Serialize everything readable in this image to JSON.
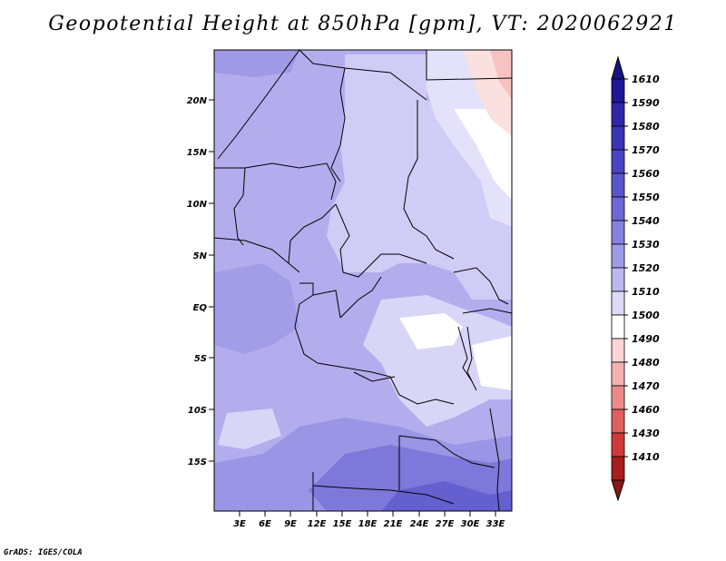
{
  "title": "Geopotential Height at 850hPa [gpm], VT: 2020062921",
  "credit": "GrADS: IGES/COLA",
  "map": {
    "lat_labels": [
      "20N",
      "15N",
      "10N",
      "5N",
      "EQ",
      "5S",
      "10S",
      "15S"
    ],
    "lon_labels": [
      "3E",
      "6E",
      "9E",
      "12E",
      "15E",
      "18E",
      "21E",
      "24E",
      "27E",
      "30E",
      "33E"
    ]
  },
  "colorbar": {
    "levels": [
      "1610",
      "1590",
      "1580",
      "1570",
      "1560",
      "1550",
      "1540",
      "1530",
      "1520",
      "1510",
      "1500",
      "1490",
      "1480",
      "1470",
      "1460",
      "1430",
      "1410"
    ],
    "colors": [
      "#1f1796",
      "#2e28a8",
      "#3b35b5",
      "#4a44c2",
      "#5b55cc",
      "#6e68d6",
      "#8680e0",
      "#a09be8",
      "#bcb8f0",
      "#dcdaf8",
      "#ffffff",
      "#fbd5d5",
      "#f5b1b1",
      "#ec8a8a",
      "#df5e5e",
      "#d03a3a",
      "#a81d1d"
    ],
    "top_cap_color": "#1a1480",
    "bottom_cap_color": "#8a1515"
  }
}
